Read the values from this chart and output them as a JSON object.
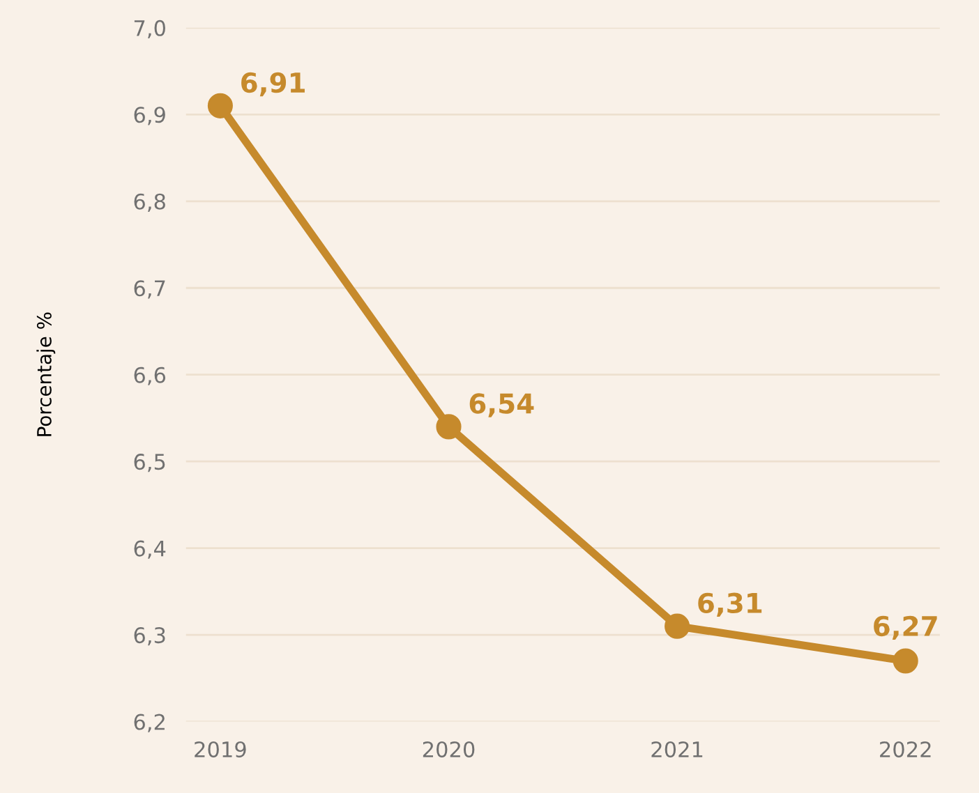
{
  "chart_data": {
    "type": "line",
    "ylabel": "Porcentaje %",
    "categories": [
      "2019",
      "2020",
      "2021",
      "2022"
    ],
    "series": [
      {
        "color": "#c68a2c",
        "values": [
          6.91,
          6.54,
          6.31,
          6.27
        ],
        "value_labels": [
          "6,91",
          "6,54",
          "6,31",
          "6,27"
        ]
      }
    ],
    "ylim": [
      6.2,
      7.0
    ],
    "yticks": [
      {
        "value": 6.2,
        "label": "6,2"
      },
      {
        "value": 6.3,
        "label": "6,3"
      },
      {
        "value": 6.4,
        "label": "6,4"
      },
      {
        "value": 6.5,
        "label": "6,5"
      },
      {
        "value": 6.6,
        "label": "6,6"
      },
      {
        "value": 6.7,
        "label": "6,7"
      },
      {
        "value": 6.8,
        "label": "6,8"
      },
      {
        "value": 6.9,
        "label": "6,9"
      },
      {
        "value": 7.0,
        "label": "7,0"
      }
    ],
    "grid": "y",
    "marker": "circle",
    "line_style": "solid",
    "legend": false
  }
}
